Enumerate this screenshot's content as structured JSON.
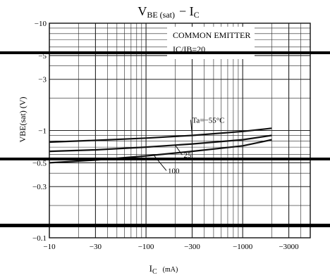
{
  "chart_data": {
    "type": "line",
    "title": "VBE(sat) − IC",
    "title_main": "V",
    "title_sub": "BE (sat)",
    "title_rest": "−  I",
    "title_sub2": "C",
    "annotation_1": "COMMON EMITTER",
    "annotation_2": "IC/IB=20",
    "xlabel": "IC  (mA)",
    "xlabel_main": "I",
    "xlabel_sub": "C",
    "xlabel_unit": "(mA)",
    "ylabel": "VBE(sat)  (V)",
    "x_scale": "log",
    "y_scale": "log",
    "x_ticks": [
      "−10",
      "−30",
      "−100",
      "−300",
      "−1000",
      "−3000"
    ],
    "x_tick_values": [
      -10,
      -30,
      -100,
      -300,
      -1000,
      -3000
    ],
    "y_ticks": [
      "−10",
      "−5",
      "−3",
      "−1",
      "−0.5",
      "−0.3",
      "−0.1"
    ],
    "y_tick_values": [
      -10,
      -5,
      -3,
      -1,
      -0.5,
      -0.3,
      -0.1
    ],
    "xlim": [
      -10,
      -5000
    ],
    "ylim": [
      -10,
      -0.1
    ],
    "grid": true,
    "series": [
      {
        "name": "Ta=-55°C",
        "label": "Ta=−55°C",
        "x": [
          -10,
          -30,
          -100,
          -300,
          -1000,
          -2000
        ],
        "y": [
          -0.78,
          -0.81,
          -0.85,
          -0.9,
          -0.98,
          -1.05
        ]
      },
      {
        "name": "25",
        "label": "25",
        "x": [
          -10,
          -30,
          -100,
          -300,
          -1000,
          -2000
        ],
        "y": [
          -0.64,
          -0.66,
          -0.7,
          -0.75,
          -0.82,
          -0.9
        ]
      },
      {
        "name": "100",
        "label": "100",
        "x": [
          -10,
          -30,
          -100,
          -300,
          -1000,
          -2000
        ],
        "y": [
          -0.5,
          -0.53,
          -0.58,
          -0.64,
          -0.72,
          -0.82
        ]
      }
    ]
  }
}
